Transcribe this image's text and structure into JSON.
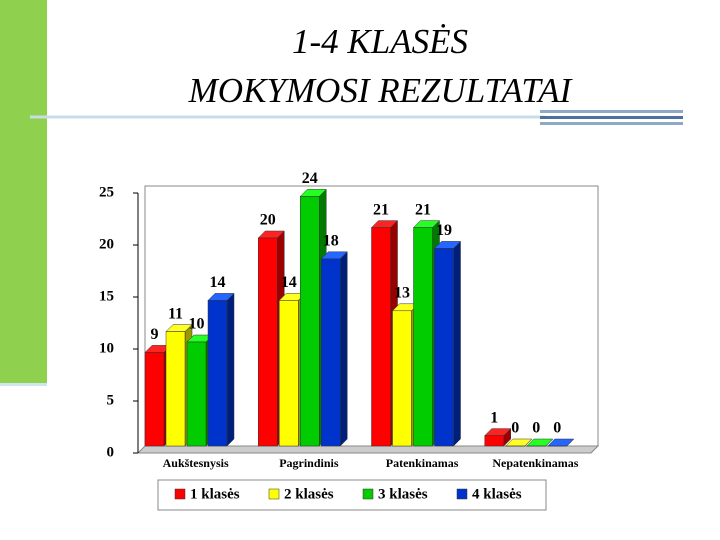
{
  "chart_data": {
    "type": "bar3d",
    "title": [
      "1-4 KLASĖS",
      "MOKYMOSI REZULTATAI"
    ],
    "categories": [
      "Aukštesnysis",
      "Pagrindinis",
      "Patenkinamas",
      "Nepatenkinamas"
    ],
    "series": [
      {
        "name": "1 klasės",
        "color": "#ff0000",
        "values": [
          9,
          20,
          21,
          1
        ]
      },
      {
        "name": "2 klasės",
        "color": "#ffff00",
        "values": [
          11,
          14,
          13,
          0
        ]
      },
      {
        "name": "3 klasės",
        "color": "#00cc00",
        "values": [
          10,
          24,
          21,
          0
        ]
      },
      {
        "name": "4 klasės",
        "color": "#0033cc",
        "values": [
          14,
          18,
          19,
          0
        ]
      }
    ],
    "ylim": [
      0,
      25
    ],
    "yticks": [
      0,
      5,
      10,
      15,
      20,
      25
    ],
    "legend": "bottom"
  }
}
